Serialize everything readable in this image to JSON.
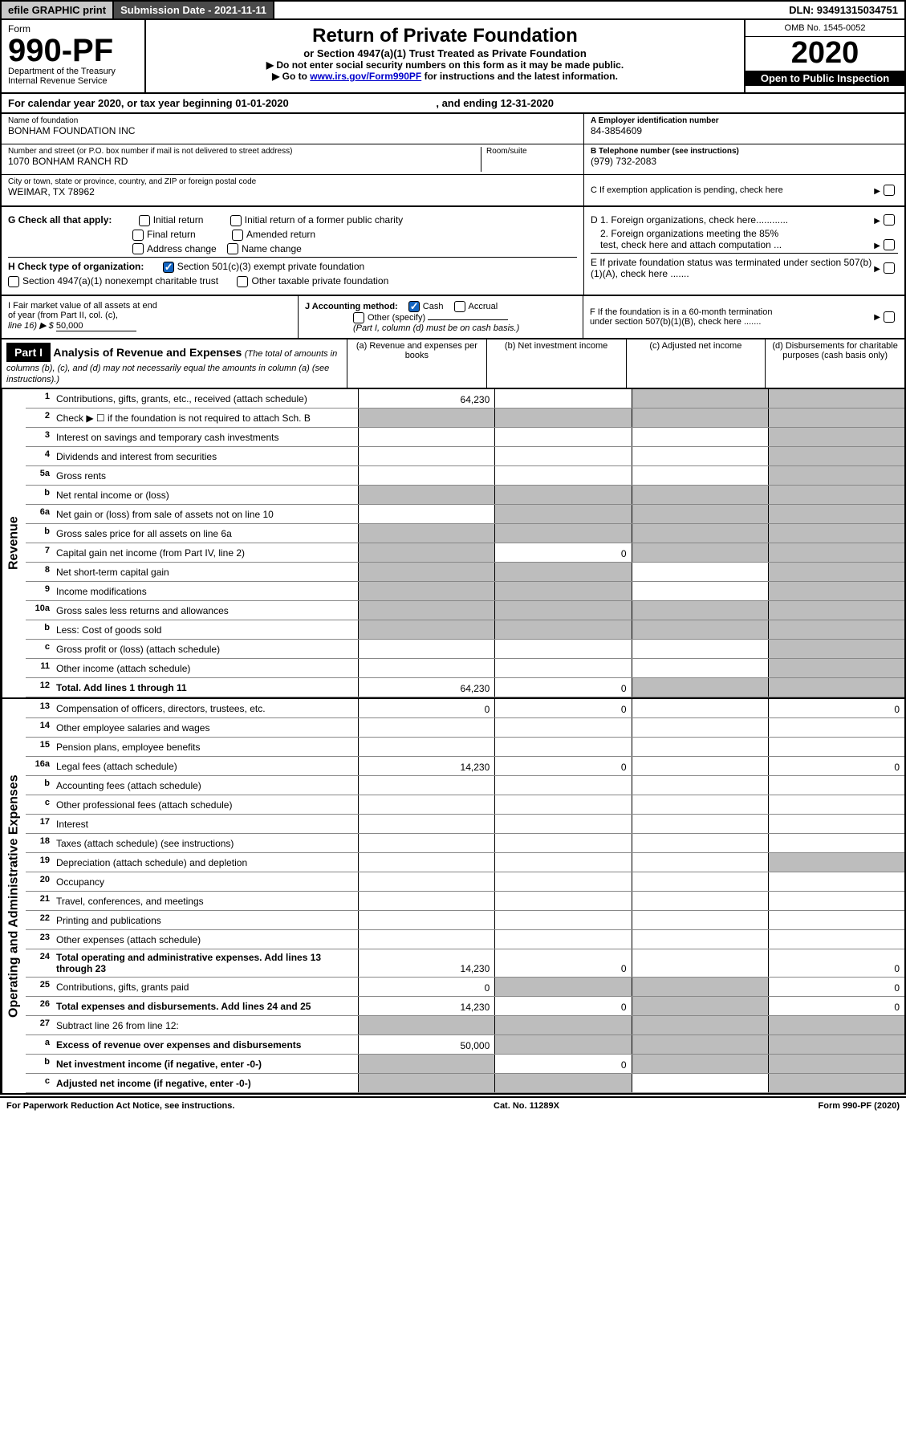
{
  "top": {
    "efile": "efile GRAPHIC print",
    "submission": "Submission Date - 2021-11-11",
    "dln": "DLN: 93491315034751"
  },
  "header": {
    "form": "Form",
    "num": "990-PF",
    "dept": "Department of the Treasury",
    "irs": "Internal Revenue Service",
    "title": "Return of Private Foundation",
    "subtitle": "or Section 4947(a)(1) Trust Treated as Private Foundation",
    "instr1": "▶ Do not enter social security numbers on this form as it may be made public.",
    "instr2_pre": "▶ Go to ",
    "instr2_link": "www.irs.gov/Form990PF",
    "instr2_post": " for instructions and the latest information.",
    "omb": "OMB No. 1545-0052",
    "year": "2020",
    "open": "Open to Public Inspection"
  },
  "calyear": {
    "text_pre": "For calendar year 2020, or tax year beginning ",
    "begin": "01-01-2020",
    "mid": " , and ending ",
    "end": "12-31-2020"
  },
  "entity": {
    "name_label": "Name of foundation",
    "name": "BONHAM FOUNDATION INC",
    "addr_label": "Number and street (or P.O. box number if mail is not delivered to street address)",
    "addr": "1070 BONHAM RANCH RD",
    "room_label": "Room/suite",
    "city_label": "City or town, state or province, country, and ZIP or foreign postal code",
    "city": "WEIMAR, TX  78962",
    "A_label": "A Employer identification number",
    "A": "84-3854609",
    "B_label": "B Telephone number (see instructions)",
    "B": "(979) 732-2083",
    "C": "C If exemption application is pending, check here"
  },
  "G": {
    "label": "G Check all that apply:",
    "opts": [
      "Initial return",
      "Final return",
      "Address change",
      "Initial return of a former public charity",
      "Amended return",
      "Name change"
    ]
  },
  "D": {
    "d1": "D 1. Foreign organizations, check here............",
    "d2a": "2. Foreign organizations meeting the 85%",
    "d2b": "test, check here and attach computation ..."
  },
  "E": "E  If private foundation status was terminated under section 507(b)(1)(A), check here .......",
  "H": {
    "label": "H Check type of organization:",
    "opt1": "Section 501(c)(3) exempt private foundation",
    "opt2": "Section 4947(a)(1) nonexempt charitable trust",
    "opt3": "Other taxable private foundation"
  },
  "I": {
    "label1": "I Fair market value of all assets at end",
    "label2": "of year (from Part II, col. (c),",
    "label3": "line 16) ▶ $",
    "value": "50,000"
  },
  "J": {
    "label": "J Accounting method:",
    "cash": "Cash",
    "accrual": "Accrual",
    "other": "Other (specify)",
    "note": "(Part I, column (d) must be on cash basis.)"
  },
  "F": {
    "label1": "F  If the foundation is in a 60-month termination",
    "label2": "under section 507(b)(1)(B), check here ......."
  },
  "part1": {
    "hdr": "Part I",
    "title": "Analysis of Revenue and Expenses",
    "note": " (The total of amounts in columns (b), (c), and (d) may not necessarily equal the amounts in column (a) (see instructions).)",
    "col_a": "(a) Revenue and expenses per books",
    "col_b": "(b) Net investment income",
    "col_c": "(c) Adjusted net income",
    "col_d": "(d) Disbursements for charitable purposes (cash basis only)"
  },
  "side": {
    "revenue": "Revenue",
    "expenses": "Operating and Administrative Expenses"
  },
  "rows": {
    "r1": {
      "n": "1",
      "d": "Contributions, gifts, grants, etc., received (attach schedule)",
      "a": "64,230"
    },
    "r2": {
      "n": "2",
      "d": "Check ▶ ☐ if the foundation is not required to attach Sch. B"
    },
    "r3": {
      "n": "3",
      "d": "Interest on savings and temporary cash investments"
    },
    "r4": {
      "n": "4",
      "d": "Dividends and interest from securities"
    },
    "r5a": {
      "n": "5a",
      "d": "Gross rents"
    },
    "r5b": {
      "n": "b",
      "d": "Net rental income or (loss)"
    },
    "r6a": {
      "n": "6a",
      "d": "Net gain or (loss) from sale of assets not on line 10"
    },
    "r6b": {
      "n": "b",
      "d": "Gross sales price for all assets on line 6a"
    },
    "r7": {
      "n": "7",
      "d": "Capital gain net income (from Part IV, line 2)",
      "b": "0"
    },
    "r8": {
      "n": "8",
      "d": "Net short-term capital gain"
    },
    "r9": {
      "n": "9",
      "d": "Income modifications"
    },
    "r10a": {
      "n": "10a",
      "d": "Gross sales less returns and allowances"
    },
    "r10b": {
      "n": "b",
      "d": "Less: Cost of goods sold"
    },
    "r10c": {
      "n": "c",
      "d": "Gross profit or (loss) (attach schedule)"
    },
    "r11": {
      "n": "11",
      "d": "Other income (attach schedule)"
    },
    "r12": {
      "n": "12",
      "d": "Total. Add lines 1 through 11",
      "a": "64,230",
      "b": "0"
    },
    "r13": {
      "n": "13",
      "d": "Compensation of officers, directors, trustees, etc.",
      "a": "0",
      "b": "0",
      "dd": "0"
    },
    "r14": {
      "n": "14",
      "d": "Other employee salaries and wages"
    },
    "r15": {
      "n": "15",
      "d": "Pension plans, employee benefits"
    },
    "r16a": {
      "n": "16a",
      "d": "Legal fees (attach schedule)",
      "a": "14,230",
      "b": "0",
      "dd": "0"
    },
    "r16b": {
      "n": "b",
      "d": "Accounting fees (attach schedule)"
    },
    "r16c": {
      "n": "c",
      "d": "Other professional fees (attach schedule)"
    },
    "r17": {
      "n": "17",
      "d": "Interest"
    },
    "r18": {
      "n": "18",
      "d": "Taxes (attach schedule) (see instructions)"
    },
    "r19": {
      "n": "19",
      "d": "Depreciation (attach schedule) and depletion"
    },
    "r20": {
      "n": "20",
      "d": "Occupancy"
    },
    "r21": {
      "n": "21",
      "d": "Travel, conferences, and meetings"
    },
    "r22": {
      "n": "22",
      "d": "Printing and publications"
    },
    "r23": {
      "n": "23",
      "d": "Other expenses (attach schedule)"
    },
    "r24": {
      "n": "24",
      "d": "Total operating and administrative expenses. Add lines 13 through 23",
      "a": "14,230",
      "b": "0",
      "dd": "0"
    },
    "r25": {
      "n": "25",
      "d": "Contributions, gifts, grants paid",
      "a": "0",
      "dd": "0"
    },
    "r26": {
      "n": "26",
      "d": "Total expenses and disbursements. Add lines 24 and 25",
      "a": "14,230",
      "b": "0",
      "dd": "0"
    },
    "r27": {
      "n": "27",
      "d": "Subtract line 26 from line 12:"
    },
    "r27a": {
      "n": "a",
      "d": "Excess of revenue over expenses and disbursements",
      "a": "50,000"
    },
    "r27b": {
      "n": "b",
      "d": "Net investment income (if negative, enter -0-)",
      "b": "0"
    },
    "r27c": {
      "n": "c",
      "d": "Adjusted net income (if negative, enter -0-)"
    }
  },
  "footer": {
    "left": "For Paperwork Reduction Act Notice, see instructions.",
    "mid": "Cat. No. 11289X",
    "right": "Form 990-PF (2020)"
  }
}
